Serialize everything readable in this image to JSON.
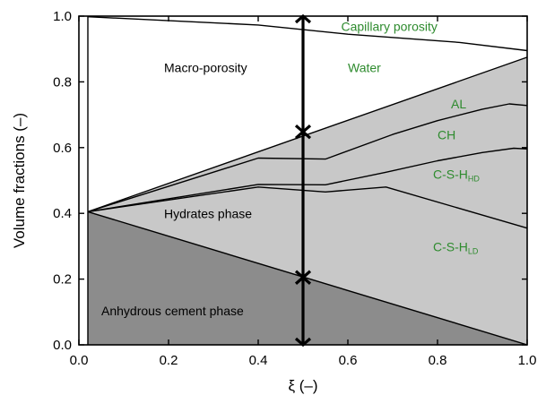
{
  "chart_data": {
    "type": "area",
    "xlabel": "ξ (–)",
    "ylabel": "Volume fractions (–)",
    "xlim": [
      0.0,
      1.0
    ],
    "ylim": [
      0.0,
      1.0
    ],
    "x_ticks": [
      "0.0",
      "0.2",
      "0.4",
      "0.6",
      "0.8",
      "1.0"
    ],
    "y_ticks": [
      "0.0",
      "0.2",
      "0.4",
      "0.6",
      "0.8",
      "1.0"
    ],
    "grid": false,
    "colors": {
      "anhydrous_fill": "#8c8c8c",
      "hydrates_fill": "#c8c8c8",
      "label_green": "#2e8b2e",
      "label_black": "#000000"
    },
    "boundaries": [
      {
        "name": "anhydrous_top",
        "points": [
          [
            0.02,
            0.405
          ],
          [
            1.0,
            0.0
          ]
        ]
      },
      {
        "name": "c-s-h-ld_top",
        "points": [
          [
            0.02,
            0.405
          ],
          [
            0.4,
            0.48
          ],
          [
            0.55,
            0.465
          ],
          [
            0.685,
            0.48
          ],
          [
            1.0,
            0.355
          ]
        ]
      },
      {
        "name": "c-s-h-hd_top",
        "points": [
          [
            0.02,
            0.405
          ],
          [
            0.4,
            0.488
          ],
          [
            0.55,
            0.487
          ],
          [
            0.685,
            0.525
          ],
          [
            0.8,
            0.56
          ],
          [
            0.9,
            0.585
          ],
          [
            0.97,
            0.598
          ],
          [
            1.0,
            0.596
          ]
        ]
      },
      {
        "name": "ch_top",
        "points": [
          [
            0.02,
            0.405
          ],
          [
            0.4,
            0.568
          ],
          [
            0.55,
            0.565
          ],
          [
            0.7,
            0.64
          ],
          [
            0.8,
            0.682
          ],
          [
            0.9,
            0.717
          ],
          [
            0.96,
            0.733
          ],
          [
            1.0,
            0.728
          ]
        ]
      },
      {
        "name": "al_top",
        "points": [
          [
            0.02,
            0.405
          ],
          [
            1.0,
            0.875
          ]
        ]
      },
      {
        "name": "water_top",
        "points": [
          [
            0.02,
            0.998
          ],
          [
            0.4,
            0.973
          ],
          [
            0.6,
            0.945
          ],
          [
            0.85,
            0.92
          ],
          [
            1.0,
            0.895
          ]
        ]
      }
    ],
    "labels": {
      "capillary_porosity": "Capillary porosity",
      "macro_porosity": "Macro-porosity",
      "water": "Water",
      "al": "AL",
      "ch": "CH",
      "csh_hd": "C-S-H",
      "csh_hd_sub": "HD",
      "hydrates": "Hydrates phase",
      "csh_ld": "C-S-H",
      "csh_ld_sub": "LD",
      "anhydrous": "Anhydrous cement phase"
    },
    "annotations": {
      "arrow_x": 0.5,
      "arrow_ticks_y": [
        1.0,
        0.648,
        0.205,
        0.0
      ]
    }
  }
}
